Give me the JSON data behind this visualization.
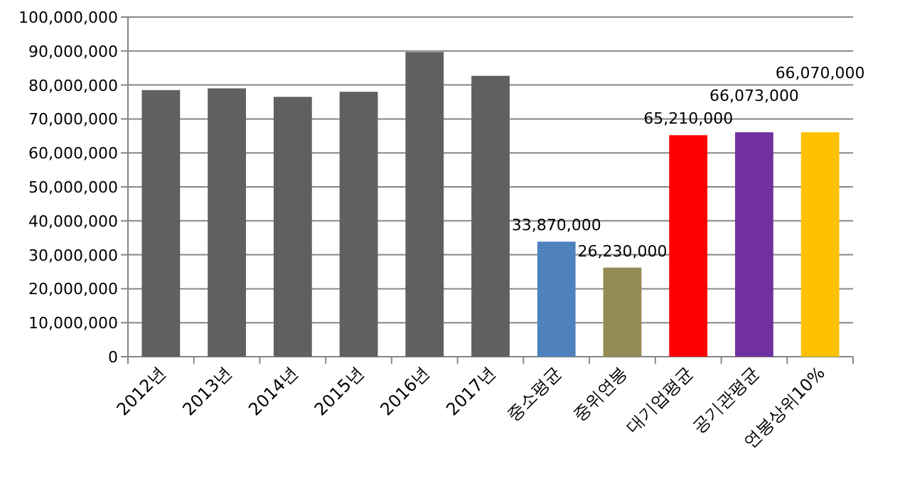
{
  "chart_data": {
    "type": "bar",
    "categories": [
      "2012년",
      "2013년",
      "2014년",
      "2015년",
      "2016년",
      "2017년",
      "중소평균",
      "중위연봉",
      "대기업평균",
      "공기관평균",
      "연봉상위10%"
    ],
    "values": [
      78500000,
      79000000,
      76500000,
      78000000,
      89700000,
      82700000,
      33870000,
      26230000,
      65210000,
      66073000,
      66070000
    ],
    "colors": [
      "#606060",
      "#606060",
      "#606060",
      "#606060",
      "#606060",
      "#606060",
      "#4f81bd",
      "#948a54",
      "#ff0000",
      "#7030a0",
      "#ffc000"
    ],
    "value_labels": [
      null,
      null,
      null,
      null,
      null,
      null,
      "33,870,000",
      "26,230,000",
      "65,210,000",
      "66,073,000",
      "66,070,000"
    ],
    "ylim": [
      0,
      100000000
    ],
    "yticks": [
      {
        "value": 0,
        "label": "0"
      },
      {
        "value": 10000000,
        "label": "10,000,000"
      },
      {
        "value": 20000000,
        "label": "20,000,000"
      },
      {
        "value": 30000000,
        "label": "30,000,000"
      },
      {
        "value": 40000000,
        "label": "40,000,000"
      },
      {
        "value": 50000000,
        "label": "50,000,000"
      },
      {
        "value": 60000000,
        "label": "60,000,000"
      },
      {
        "value": 70000000,
        "label": "70,000,000"
      },
      {
        "value": 80000000,
        "label": "80,000,000"
      },
      {
        "value": 90000000,
        "label": "90,000,000"
      },
      {
        "value": 100000000,
        "label": "100,000,000"
      }
    ],
    "grid": "y"
  }
}
